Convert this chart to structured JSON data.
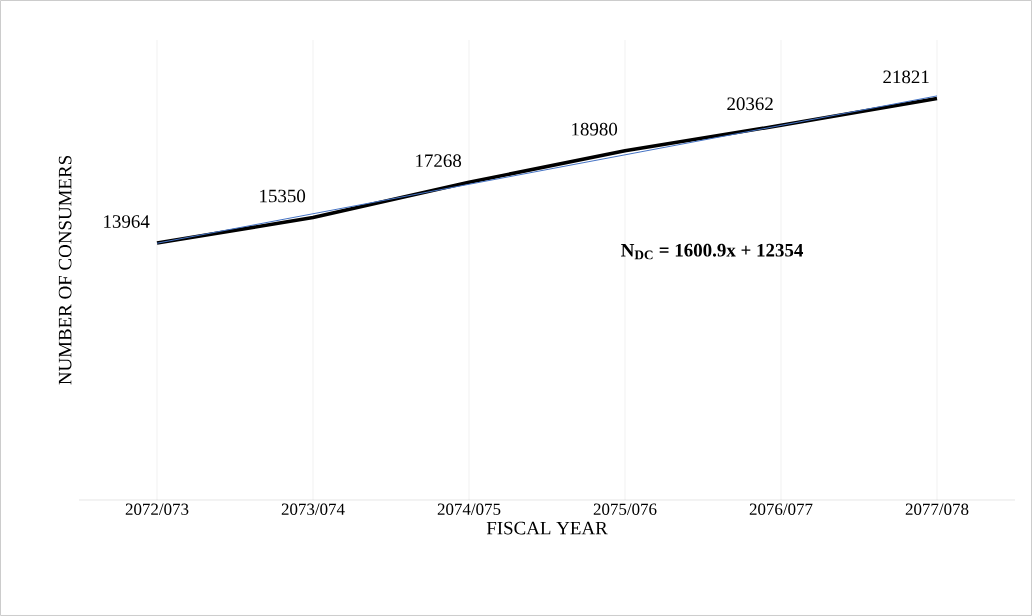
{
  "chart_data": {
    "type": "line",
    "xlabel": "FISCAL YEAR",
    "ylabel": "NUMBER OF CONSUMERS",
    "categories": [
      "2072/073",
      "2073/074",
      "2074/075",
      "2075/076",
      "2076/077",
      "2077/078"
    ],
    "series": [
      {
        "color": "#000000",
        "values": [
          13964,
          15350,
          17268,
          18980,
          20362,
          21821
        ],
        "value_labels": [
          "13964",
          "15350",
          "17268",
          "18980",
          "20362",
          "21821"
        ]
      },
      {
        "type": "line",
        "color": "#4472c4",
        "values": [
          13955,
          15556,
          17157,
          18758,
          20359,
          21960
        ]
      }
    ],
    "annotations": [
      "N$_{DC}$ = 1600.9x + 12354"
    ],
    "ylim": [
      0,
      25000
    ],
    "tick_labels": "x",
    "grid": "x",
    "marker": "none",
    "line_style": "solid"
  }
}
